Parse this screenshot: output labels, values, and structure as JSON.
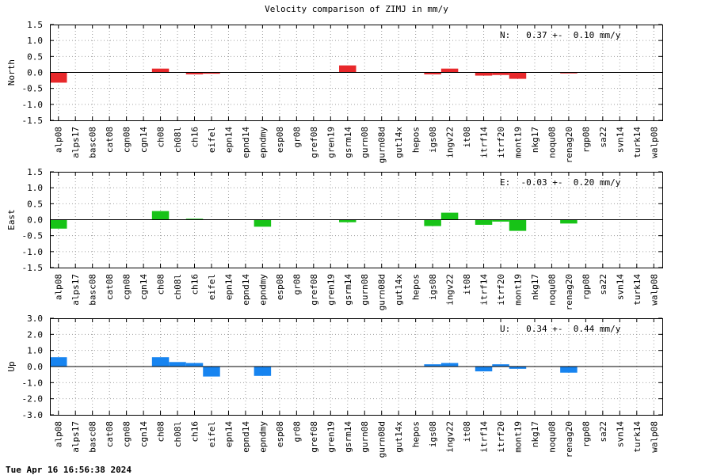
{
  "title": "Velocity comparison of ZIMJ in mm/y",
  "timestamp": "Tue Apr 16 16:56:38 2024",
  "chart_data": [
    {
      "type": "bar",
      "ylabel": "North",
      "annotation": "N:   0.37 +-  0.10 mm/y",
      "ylim": [
        -1.5,
        1.5
      ],
      "yticks": [
        "1.5",
        "1.0",
        "0.5",
        "0.0",
        "-0.5",
        "-1.0",
        "-1.5"
      ],
      "ytick_values": [
        1.5,
        1.0,
        0.5,
        0.0,
        -0.5,
        -1.0,
        -1.5
      ],
      "color": "#e8282b",
      "grid": true,
      "categories": [
        "alp08",
        "alps17",
        "basc08",
        "cat08",
        "cgn08",
        "cgn14",
        "ch08",
        "ch08l",
        "ch16",
        "eifel",
        "epn14",
        "epnd14",
        "epndmy",
        "esp08",
        "gr08",
        "gref08",
        "gren19",
        "gsrm14",
        "gurn08",
        "gurn08d",
        "gut14x",
        "hepos",
        "igs08",
        "ingv22",
        "it08",
        "itrf14",
        "itrf20",
        "mont19",
        "nkg17",
        "noqu08",
        "renag20",
        "rgp08",
        "sa22",
        "svn14",
        "turk14",
        "walp08"
      ],
      "values": [
        -0.32,
        null,
        null,
        null,
        null,
        null,
        0.12,
        null,
        -0.06,
        -0.04,
        null,
        null,
        null,
        null,
        null,
        null,
        null,
        0.22,
        null,
        null,
        null,
        null,
        -0.06,
        0.12,
        null,
        -0.1,
        -0.08,
        -0.2,
        null,
        null,
        -0.03,
        null,
        null,
        null,
        null,
        null
      ]
    },
    {
      "type": "bar",
      "ylabel": "East",
      "annotation": "E:  -0.03 +-  0.20 mm/y",
      "ylim": [
        -1.5,
        1.5
      ],
      "yticks": [
        "1.5",
        "1.0",
        "0.5",
        "0.0",
        "-0.5",
        "-1.0",
        "-1.5"
      ],
      "ytick_values": [
        1.5,
        1.0,
        0.5,
        0.0,
        -0.5,
        -1.0,
        -1.5
      ],
      "color": "#17c317",
      "grid": true,
      "categories": [
        "alp08",
        "alps17",
        "basc08",
        "cat08",
        "cgn08",
        "cgn14",
        "ch08",
        "ch08l",
        "ch16",
        "eifel",
        "epn14",
        "epnd14",
        "epndmy",
        "esp08",
        "gr08",
        "gref08",
        "gren19",
        "gsrm14",
        "gurn08",
        "gurn08d",
        "gut14x",
        "hepos",
        "igs08",
        "ingv22",
        "it08",
        "itrf14",
        "itrf20",
        "mont19",
        "nkg17",
        "noqu08",
        "renag20",
        "rgp08",
        "sa22",
        "svn14",
        "turk14",
        "walp08"
      ],
      "values": [
        -0.28,
        null,
        null,
        null,
        null,
        null,
        0.27,
        null,
        0.03,
        null,
        null,
        null,
        -0.22,
        null,
        null,
        null,
        null,
        -0.08,
        null,
        null,
        null,
        null,
        -0.2,
        0.22,
        null,
        -0.16,
        -0.06,
        -0.35,
        null,
        null,
        -0.12,
        null,
        null,
        null,
        null,
        null
      ]
    },
    {
      "type": "bar",
      "ylabel": "Up",
      "annotation": "U:   0.34 +-  0.44 mm/y",
      "ylim": [
        -3.0,
        3.0
      ],
      "yticks": [
        "3.0",
        "2.0",
        "1.0",
        "0.0",
        "-1.0",
        "-2.0",
        "-3.0"
      ],
      "ytick_values": [
        3.0,
        2.0,
        1.0,
        0.0,
        -1.0,
        -2.0,
        -3.0
      ],
      "color": "#1784f0",
      "grid": true,
      "categories": [
        "alp08",
        "alps17",
        "basc08",
        "cat08",
        "cgn08",
        "cgn14",
        "ch08",
        "ch08l",
        "ch16",
        "eifel",
        "epn14",
        "epnd14",
        "epndmy",
        "esp08",
        "gr08",
        "gref08",
        "gren19",
        "gsrm14",
        "gurn08",
        "gurn08d",
        "gut14x",
        "hepos",
        "igs08",
        "ingv22",
        "it08",
        "itrf14",
        "itrf20",
        "mont19",
        "nkg17",
        "noqu08",
        "renag20",
        "rgp08",
        "sa22",
        "svn14",
        "turk14",
        "walp08"
      ],
      "values": [
        0.58,
        null,
        null,
        null,
        null,
        null,
        0.58,
        0.28,
        0.22,
        -0.62,
        null,
        null,
        -0.58,
        null,
        null,
        null,
        null,
        null,
        null,
        null,
        null,
        null,
        0.14,
        0.22,
        null,
        -0.3,
        0.14,
        -0.14,
        null,
        null,
        -0.38,
        null,
        null,
        null,
        null,
        null
      ]
    }
  ]
}
